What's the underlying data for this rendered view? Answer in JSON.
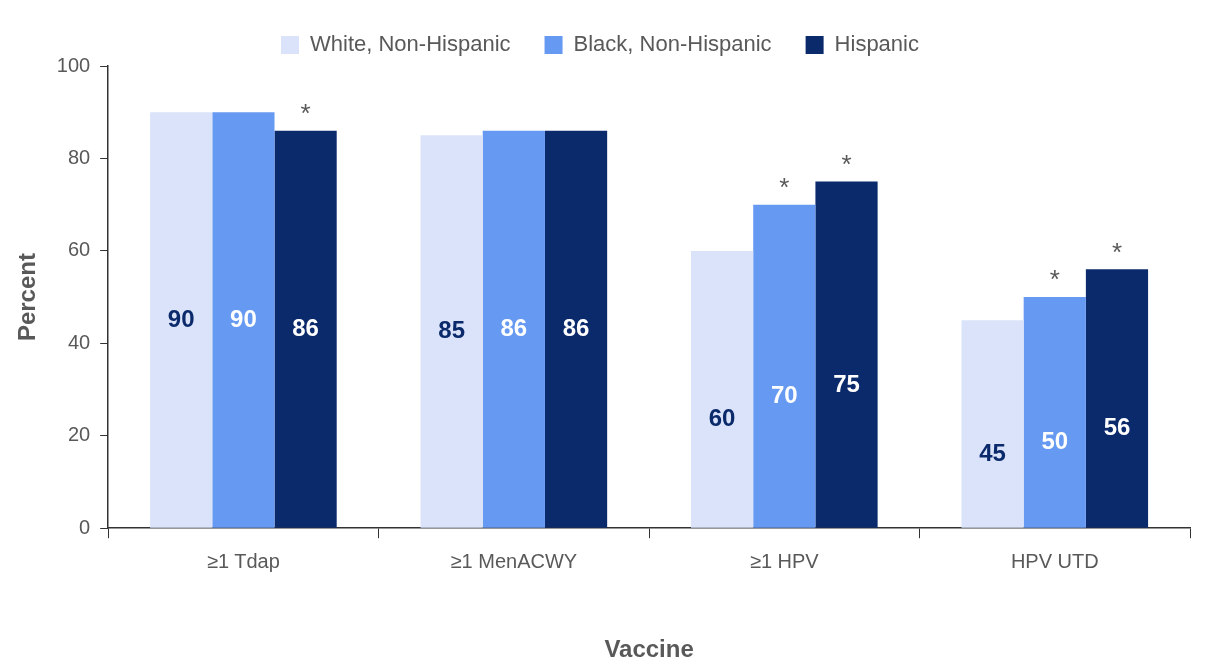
{
  "chart_data": {
    "type": "bar",
    "xlabel": "Vaccine",
    "ylabel": "Percent",
    "categories": [
      "≥1 Tdap",
      "≥1 MenACWY",
      "≥1 HPV",
      "HPV UTD"
    ],
    "series": [
      {
        "name": "White, Non-Hispanic",
        "color": "#dae3fa",
        "values": [
          90,
          85,
          60,
          45
        ]
      },
      {
        "name": "Black, Non-Hispanic",
        "color": "#6699f2",
        "values": [
          90,
          86,
          70,
          50
        ]
      },
      {
        "name": "Hispanic",
        "color": "#0b2a6b",
        "values": [
          86,
          86,
          75,
          56
        ]
      }
    ],
    "ylim": [
      0,
      100
    ],
    "yticks": [
      0,
      20,
      40,
      60,
      80,
      100
    ],
    "grid": false,
    "legend": "top",
    "data_labels": true,
    "annotations": [
      "*",
      {
        "text": "*",
        "x": "≥1 HPV",
        "y": 70
      },
      "*",
      {
        "text": "*",
        "x": "HPV UTD",
        "y": 50
      },
      "*"
    ]
  }
}
